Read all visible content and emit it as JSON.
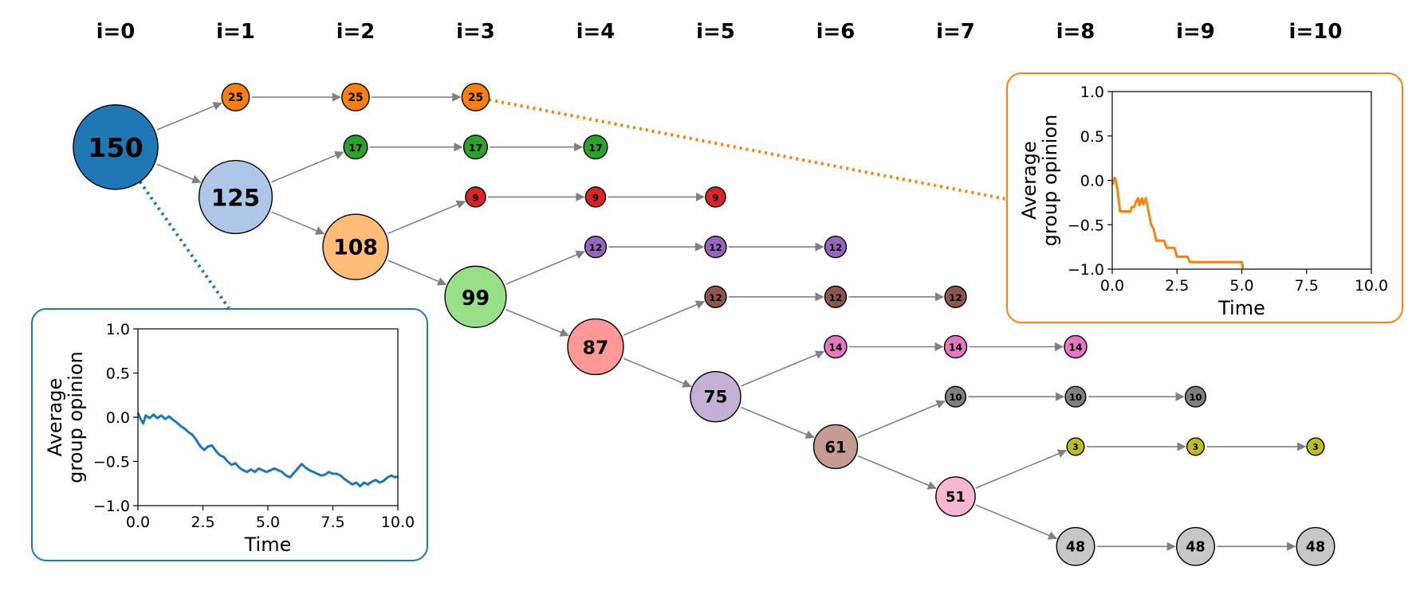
{
  "columns": [
    "i=0",
    "i=1",
    "i=2",
    "i=3",
    "i=4",
    "i=5",
    "i=6",
    "i=7",
    "i=8",
    "i=9",
    "i=10"
  ],
  "nodes": [
    {
      "id": "n150",
      "label": "150",
      "col": 0,
      "row": 1,
      "size": 150,
      "color": "#1f77b4"
    },
    {
      "id": "n25a",
      "label": "25",
      "col": 1,
      "row": 0,
      "size": 25,
      "color": "#ff7f0e"
    },
    {
      "id": "n25b",
      "label": "25",
      "col": 2,
      "row": 0,
      "size": 25,
      "color": "#ff7f0e"
    },
    {
      "id": "n25c",
      "label": "25",
      "col": 3,
      "row": 0,
      "size": 25,
      "color": "#ff7f0e"
    },
    {
      "id": "n125",
      "label": "125",
      "col": 1,
      "row": 2,
      "size": 125,
      "color": "#aec7e8"
    },
    {
      "id": "n17a",
      "label": "17",
      "col": 2,
      "row": 1,
      "size": 17,
      "color": "#2ca02c"
    },
    {
      "id": "n17b",
      "label": "17",
      "col": 3,
      "row": 1,
      "size": 17,
      "color": "#2ca02c"
    },
    {
      "id": "n17c",
      "label": "17",
      "col": 4,
      "row": 1,
      "size": 17,
      "color": "#2ca02c"
    },
    {
      "id": "n108",
      "label": "108",
      "col": 2,
      "row": 3,
      "size": 108,
      "color": "#ffbb78"
    },
    {
      "id": "n9a",
      "label": "9",
      "col": 3,
      "row": 2,
      "size": 9,
      "color": "#d62728"
    },
    {
      "id": "n9b",
      "label": "9",
      "col": 4,
      "row": 2,
      "size": 9,
      "color": "#d62728"
    },
    {
      "id": "n9c",
      "label": "9",
      "col": 5,
      "row": 2,
      "size": 9,
      "color": "#d62728"
    },
    {
      "id": "n99",
      "label": "99",
      "col": 3,
      "row": 4,
      "size": 99,
      "color": "#98df8a"
    },
    {
      "id": "n12pa",
      "label": "12",
      "col": 4,
      "row": 3,
      "size": 12,
      "color": "#9467bd"
    },
    {
      "id": "n12pb",
      "label": "12",
      "col": 5,
      "row": 3,
      "size": 12,
      "color": "#9467bd"
    },
    {
      "id": "n12pc",
      "label": "12",
      "col": 6,
      "row": 3,
      "size": 12,
      "color": "#9467bd"
    },
    {
      "id": "n87",
      "label": "87",
      "col": 4,
      "row": 5,
      "size": 87,
      "color": "#ff9896"
    },
    {
      "id": "n12ba",
      "label": "12",
      "col": 5,
      "row": 4,
      "size": 12,
      "color": "#8c564b"
    },
    {
      "id": "n12bb",
      "label": "12",
      "col": 6,
      "row": 4,
      "size": 12,
      "color": "#8c564b"
    },
    {
      "id": "n12bc",
      "label": "12",
      "col": 7,
      "row": 4,
      "size": 12,
      "color": "#8c564b"
    },
    {
      "id": "n75",
      "label": "75",
      "col": 5,
      "row": 6,
      "size": 75,
      "color": "#c5b0d5"
    },
    {
      "id": "n14a",
      "label": "14",
      "col": 6,
      "row": 5,
      "size": 14,
      "color": "#e377c2"
    },
    {
      "id": "n14b",
      "label": "14",
      "col": 7,
      "row": 5,
      "size": 14,
      "color": "#e377c2"
    },
    {
      "id": "n14c",
      "label": "14",
      "col": 8,
      "row": 5,
      "size": 14,
      "color": "#e377c2"
    },
    {
      "id": "n61",
      "label": "61",
      "col": 6,
      "row": 7,
      "size": 61,
      "color": "#c49c94"
    },
    {
      "id": "n10a",
      "label": "10",
      "col": 7,
      "row": 6,
      "size": 10,
      "color": "#7f7f7f"
    },
    {
      "id": "n10b",
      "label": "10",
      "col": 8,
      "row": 6,
      "size": 10,
      "color": "#7f7f7f"
    },
    {
      "id": "n10c",
      "label": "10",
      "col": 9,
      "row": 6,
      "size": 10,
      "color": "#7f7f7f"
    },
    {
      "id": "n51",
      "label": "51",
      "col": 7,
      "row": 8,
      "size": 51,
      "color": "#f7b6d2"
    },
    {
      "id": "n3a",
      "label": "3",
      "col": 8,
      "row": 7,
      "size": 3,
      "color": "#bcbd22"
    },
    {
      "id": "n3b",
      "label": "3",
      "col": 9,
      "row": 7,
      "size": 3,
      "color": "#bcbd22"
    },
    {
      "id": "n3c",
      "label": "3",
      "col": 10,
      "row": 7,
      "size": 3,
      "color": "#bcbd22"
    },
    {
      "id": "n48a",
      "label": "48",
      "col": 8,
      "row": 9,
      "size": 48,
      "color": "#c7c7c7"
    },
    {
      "id": "n48b",
      "label": "48",
      "col": 9,
      "row": 9,
      "size": 48,
      "color": "#c7c7c7"
    },
    {
      "id": "n48c",
      "label": "48",
      "col": 10,
      "row": 9,
      "size": 48,
      "color": "#c7c7c7"
    }
  ],
  "edges": [
    [
      "n150",
      "n25a"
    ],
    [
      "n150",
      "n125"
    ],
    [
      "n25a",
      "n25b"
    ],
    [
      "n25b",
      "n25c"
    ],
    [
      "n125",
      "n17a"
    ],
    [
      "n125",
      "n108"
    ],
    [
      "n17a",
      "n17b"
    ],
    [
      "n17b",
      "n17c"
    ],
    [
      "n108",
      "n9a"
    ],
    [
      "n108",
      "n99"
    ],
    [
      "n9a",
      "n9b"
    ],
    [
      "n9b",
      "n9c"
    ],
    [
      "n99",
      "n12pa"
    ],
    [
      "n99",
      "n87"
    ],
    [
      "n12pa",
      "n12pb"
    ],
    [
      "n12pb",
      "n12pc"
    ],
    [
      "n87",
      "n12ba"
    ],
    [
      "n87",
      "n75"
    ],
    [
      "n12ba",
      "n12bb"
    ],
    [
      "n12bb",
      "n12bc"
    ],
    [
      "n75",
      "n14a"
    ],
    [
      "n75",
      "n61"
    ],
    [
      "n14a",
      "n14b"
    ],
    [
      "n14b",
      "n14c"
    ],
    [
      "n61",
      "n10a"
    ],
    [
      "n61",
      "n51"
    ],
    [
      "n10a",
      "n10b"
    ],
    [
      "n10b",
      "n10c"
    ],
    [
      "n51",
      "n3a"
    ],
    [
      "n51",
      "n48a"
    ],
    [
      "n3a",
      "n3b"
    ],
    [
      "n3b",
      "n3c"
    ],
    [
      "n48a",
      "n48b"
    ],
    [
      "n48b",
      "n48c"
    ]
  ],
  "insets": [
    {
      "name": "orange",
      "node": "n25c",
      "color": "#ff7f0e",
      "ylabel_line1": "Average",
      "ylabel_line2": "group opinion",
      "xlabel": "Time",
      "xlim": [
        0,
        10
      ],
      "ylim": [
        -1,
        1
      ],
      "xticks": [
        0,
        2.5,
        5,
        7.5,
        10
      ],
      "xtick_labels": [
        "0.0",
        "2.5",
        "5.0",
        "7.5",
        "10.0"
      ],
      "yticks": [
        1,
        0.5,
        0,
        -0.5,
        -1
      ],
      "ytick_labels": [
        "1.0",
        "0.5",
        "0.0",
        "−0.5",
        "−1.0"
      ],
      "series": [
        [
          0,
          -0.05
        ],
        [
          0.05,
          0.0
        ],
        [
          0.1,
          0.03
        ],
        [
          0.15,
          -0.02
        ],
        [
          0.2,
          -0.1
        ],
        [
          0.3,
          -0.35
        ],
        [
          0.5,
          -0.35
        ],
        [
          0.7,
          -0.35
        ],
        [
          0.75,
          -0.3
        ],
        [
          0.85,
          -0.3
        ],
        [
          0.9,
          -0.25
        ],
        [
          1.0,
          -0.2
        ],
        [
          1.05,
          -0.28
        ],
        [
          1.15,
          -0.2
        ],
        [
          1.2,
          -0.27
        ],
        [
          1.3,
          -0.2
        ],
        [
          1.4,
          -0.35
        ],
        [
          1.5,
          -0.5
        ],
        [
          1.6,
          -0.55
        ],
        [
          1.7,
          -0.68
        ],
        [
          2.0,
          -0.68
        ],
        [
          2.1,
          -0.76
        ],
        [
          2.4,
          -0.76
        ],
        [
          2.5,
          -0.86
        ],
        [
          2.9,
          -0.86
        ],
        [
          3.0,
          -0.92
        ],
        [
          5.0,
          -0.92
        ],
        [
          5.05,
          -1.0
        ]
      ]
    },
    {
      "name": "blue",
      "node": "n150",
      "color": "#1f77b4",
      "ylabel_line1": "Average",
      "ylabel_line2": "group opinion",
      "xlabel": "Time",
      "xlim": [
        0,
        10
      ],
      "ylim": [
        -1,
        1
      ],
      "xticks": [
        0,
        2.5,
        5,
        7.5,
        10
      ],
      "xtick_labels": [
        "0.0",
        "2.5",
        "5.0",
        "7.5",
        "10.0"
      ],
      "yticks": [
        1,
        0.5,
        0,
        -0.5,
        -1
      ],
      "ytick_labels": [
        "1.0",
        "0.5",
        "0.0",
        "−0.5",
        "−1.0"
      ],
      "series": [
        [
          0,
          0.05
        ],
        [
          0.1,
          -0.02
        ],
        [
          0.2,
          -0.07
        ],
        [
          0.3,
          0.02
        ],
        [
          0.45,
          -0.01
        ],
        [
          0.6,
          0.03
        ],
        [
          0.75,
          -0.01
        ],
        [
          0.9,
          0.02
        ],
        [
          1.05,
          -0.02
        ],
        [
          1.2,
          0.01
        ],
        [
          1.35,
          -0.03
        ],
        [
          1.5,
          -0.06
        ],
        [
          1.65,
          -0.1
        ],
        [
          1.8,
          -0.13
        ],
        [
          1.95,
          -0.17
        ],
        [
          2.1,
          -0.2
        ],
        [
          2.25,
          -0.26
        ],
        [
          2.4,
          -0.33
        ],
        [
          2.55,
          -0.37
        ],
        [
          2.7,
          -0.33
        ],
        [
          2.85,
          -0.32
        ],
        [
          3.0,
          -0.38
        ],
        [
          3.15,
          -0.43
        ],
        [
          3.3,
          -0.45
        ],
        [
          3.45,
          -0.5
        ],
        [
          3.6,
          -0.54
        ],
        [
          3.75,
          -0.52
        ],
        [
          3.9,
          -0.57
        ],
        [
          4.05,
          -0.6
        ],
        [
          4.2,
          -0.62
        ],
        [
          4.35,
          -0.59
        ],
        [
          4.5,
          -0.62
        ],
        [
          4.65,
          -0.58
        ],
        [
          4.8,
          -0.6
        ],
        [
          4.95,
          -0.62
        ],
        [
          5.1,
          -0.6
        ],
        [
          5.25,
          -0.58
        ],
        [
          5.4,
          -0.6
        ],
        [
          5.55,
          -0.62
        ],
        [
          5.7,
          -0.66
        ],
        [
          5.85,
          -0.68
        ],
        [
          6.0,
          -0.63
        ],
        [
          6.15,
          -0.58
        ],
        [
          6.3,
          -0.53
        ],
        [
          6.45,
          -0.57
        ],
        [
          6.6,
          -0.6
        ],
        [
          6.75,
          -0.62
        ],
        [
          6.9,
          -0.64
        ],
        [
          7.05,
          -0.66
        ],
        [
          7.2,
          -0.65
        ],
        [
          7.35,
          -0.62
        ],
        [
          7.5,
          -0.64
        ],
        [
          7.65,
          -0.64
        ],
        [
          7.8,
          -0.66
        ],
        [
          7.95,
          -0.7
        ],
        [
          8.1,
          -0.73
        ],
        [
          8.25,
          -0.76
        ],
        [
          8.4,
          -0.74
        ],
        [
          8.55,
          -0.78
        ],
        [
          8.7,
          -0.74
        ],
        [
          8.85,
          -0.76
        ],
        [
          9.0,
          -0.73
        ],
        [
          9.15,
          -0.71
        ],
        [
          9.3,
          -0.74
        ],
        [
          9.45,
          -0.72
        ],
        [
          9.6,
          -0.68
        ],
        [
          9.75,
          -0.66
        ],
        [
          9.9,
          -0.68
        ],
        [
          10.0,
          -0.67
        ]
      ]
    }
  ]
}
